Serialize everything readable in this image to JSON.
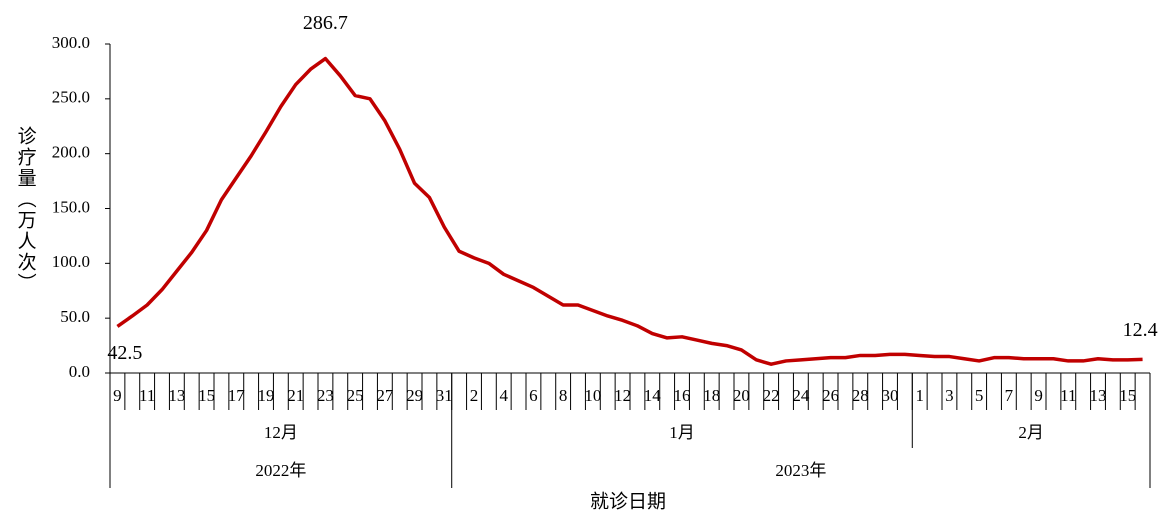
{
  "chart_data": {
    "type": "line",
    "y_label": "诊疗量（万人次）",
    "x_label": "就诊日期",
    "color": "#c00000",
    "categories": [
      "9",
      null,
      "11",
      null,
      "13",
      null,
      "15",
      null,
      "17",
      null,
      "19",
      null,
      "21",
      null,
      "23",
      null,
      "25",
      null,
      "27",
      null,
      "29",
      null,
      "31",
      null,
      "2",
      null,
      "4",
      null,
      "6",
      null,
      "8",
      null,
      "10",
      null,
      "12",
      null,
      "14",
      null,
      "16",
      null,
      "18",
      null,
      "20",
      null,
      "22",
      null,
      "24",
      null,
      "26",
      null,
      "28",
      null,
      "30",
      null,
      "1",
      null,
      "3",
      null,
      "5",
      null,
      "7",
      null,
      "9",
      null,
      "11",
      null,
      "13",
      null,
      "15",
      null
    ],
    "years": [
      {
        "label": "2022年",
        "months": [
          "12月"
        ]
      },
      {
        "label": "2023年",
        "months": [
          "1月",
          "2月"
        ]
      }
    ],
    "values": [
      42.5,
      52,
      62,
      76,
      93,
      110,
      130,
      158,
      178,
      198,
      220,
      243,
      263,
      277,
      286.7,
      271,
      253,
      250,
      230,
      204,
      173,
      160,
      133,
      111,
      105,
      100,
      90,
      84,
      78,
      70,
      62,
      62,
      57,
      52,
      48,
      43,
      36,
      32,
      33,
      30,
      27,
      25,
      21,
      12,
      8,
      11,
      12,
      13,
      14,
      14,
      16,
      16,
      17,
      17,
      16,
      15,
      15,
      13,
      11,
      14,
      14,
      13,
      13,
      13,
      11,
      11,
      13,
      12,
      12,
      12.4
    ],
    "ylim": [
      0,
      300
    ],
    "yticks": [
      {
        "value": 0,
        "label": "0.0"
      },
      {
        "value": 50,
        "label": "50.0"
      },
      {
        "value": 100,
        "label": "100.0"
      },
      {
        "value": 150,
        "label": "150.0"
      },
      {
        "value": 200,
        "label": "200.0"
      },
      {
        "value": 250,
        "label": "250.0"
      },
      {
        "value": 300,
        "label": "300.0"
      }
    ]
  }
}
